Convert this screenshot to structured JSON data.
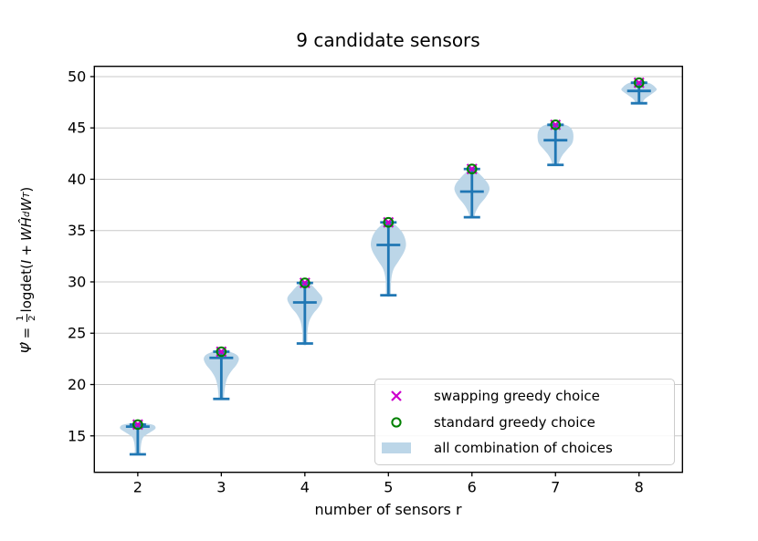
{
  "chart_data": {
    "type": "violin",
    "title": "9 candidate sensors",
    "xlabel": "number of sensors r",
    "ylabel": "Psi_hat = 1/2 logdet(I + W H_d_hat W^T)",
    "ylabel_parts": {
      "psi": "Ψ̂",
      "equals": "=",
      "frac_num": "1",
      "frac_den": "2",
      "logdet": "logdet(",
      "identity": "I",
      "plus": "+",
      "w1": "W",
      "h_hat": "Ĥ",
      "h_sub": "d",
      "w2": "W",
      "w2_sup": "T",
      "close_paren": ")"
    },
    "xticks": [
      2,
      3,
      4,
      5,
      6,
      7,
      8
    ],
    "yticks": [
      15,
      20,
      25,
      30,
      35,
      40,
      45,
      50
    ],
    "xlim": [
      1.48,
      8.52
    ],
    "ylim": [
      11.45,
      51.0
    ],
    "grid": "horizontal",
    "legend_position": "lower right",
    "colors": {
      "violin_fill": "#bcd6e8",
      "whisker_line": "#2077b4",
      "swapping_marker": "#cc00cc",
      "standard_marker": "#008000",
      "gridline": "#c8c8c8",
      "frame": "#000000"
    },
    "series": [
      {
        "r": 2,
        "swapping": 16.1,
        "standard": 16.1,
        "max": 16.1,
        "min": 13.2,
        "mean": 15.9,
        "shape": [
          [
            16.3,
            0.03
          ],
          [
            16.15,
            0.14
          ],
          [
            16.0,
            0.2
          ],
          [
            15.7,
            0.21
          ],
          [
            15.35,
            0.15
          ],
          [
            14.9,
            0.07
          ],
          [
            14.4,
            0.045
          ],
          [
            13.8,
            0.035
          ],
          [
            13.2,
            0.03
          ]
        ]
      },
      {
        "r": 3,
        "swapping": 23.2,
        "standard": 23.2,
        "max": 23.2,
        "min": 18.6,
        "mean": 22.6,
        "shape": [
          [
            23.35,
            0.025
          ],
          [
            23.15,
            0.12
          ],
          [
            22.85,
            0.19
          ],
          [
            22.45,
            0.21
          ],
          [
            21.9,
            0.18
          ],
          [
            21.3,
            0.12
          ],
          [
            20.6,
            0.07
          ],
          [
            19.8,
            0.045
          ],
          [
            19.1,
            0.035
          ],
          [
            18.55,
            0.025
          ]
        ]
      },
      {
        "r": 4,
        "swapping": 29.9,
        "standard": 29.9,
        "max": 29.9,
        "min": 24.0,
        "mean": 28.0,
        "shape": [
          [
            30.05,
            0.02
          ],
          [
            29.7,
            0.08
          ],
          [
            29.1,
            0.15
          ],
          [
            28.4,
            0.21
          ],
          [
            27.6,
            0.17
          ],
          [
            26.9,
            0.1
          ],
          [
            26.1,
            0.05
          ],
          [
            25.0,
            0.03
          ],
          [
            23.95,
            0.025
          ]
        ]
      },
      {
        "r": 5,
        "swapping": 35.8,
        "standard": 35.8,
        "max": 35.8,
        "min": 28.7,
        "mean": 33.6,
        "shape": [
          [
            35.9,
            0.025
          ],
          [
            35.5,
            0.09
          ],
          [
            34.9,
            0.16
          ],
          [
            34.2,
            0.2
          ],
          [
            33.5,
            0.21
          ],
          [
            32.8,
            0.18
          ],
          [
            32.0,
            0.12
          ],
          [
            31.2,
            0.06
          ],
          [
            30.3,
            0.035
          ],
          [
            29.4,
            0.03
          ],
          [
            28.65,
            0.025
          ]
        ]
      },
      {
        "r": 6,
        "swapping": 41.0,
        "standard": 41.0,
        "max": 41.0,
        "min": 36.3,
        "mean": 38.8,
        "shape": [
          [
            41.15,
            0.02
          ],
          [
            40.7,
            0.07
          ],
          [
            40.2,
            0.13
          ],
          [
            39.6,
            0.19
          ],
          [
            39.0,
            0.21
          ],
          [
            38.3,
            0.17
          ],
          [
            37.6,
            0.1
          ],
          [
            37.0,
            0.055
          ],
          [
            36.6,
            0.035
          ],
          [
            36.25,
            0.025
          ]
        ]
      },
      {
        "r": 7,
        "swapping": 45.3,
        "standard": 45.3,
        "max": 45.3,
        "min": 41.4,
        "mean": 43.8,
        "shape": [
          [
            45.45,
            0.04
          ],
          [
            45.2,
            0.15
          ],
          [
            44.8,
            0.2
          ],
          [
            44.2,
            0.215
          ],
          [
            43.5,
            0.2
          ],
          [
            42.9,
            0.14
          ],
          [
            42.3,
            0.08
          ],
          [
            41.8,
            0.05
          ],
          [
            41.35,
            0.03
          ]
        ]
      },
      {
        "r": 8,
        "swapping": 49.4,
        "standard": 49.4,
        "max": 49.4,
        "min": 47.4,
        "mean": 48.6,
        "shape": [
          [
            49.55,
            0.05
          ],
          [
            49.3,
            0.14
          ],
          [
            49.0,
            0.19
          ],
          [
            48.7,
            0.21
          ],
          [
            48.3,
            0.15
          ],
          [
            47.9,
            0.08
          ],
          [
            47.6,
            0.05
          ],
          [
            47.35,
            0.035
          ]
        ]
      }
    ],
    "legend": {
      "entries": [
        {
          "label": "swapping greedy choice",
          "marker": "x",
          "color": "#cc00cc"
        },
        {
          "label": "standard greedy choice",
          "marker": "o",
          "color": "#008000"
        },
        {
          "label": "all combination of choices",
          "marker": "patch",
          "color": "#bcd6e8"
        }
      ]
    }
  }
}
